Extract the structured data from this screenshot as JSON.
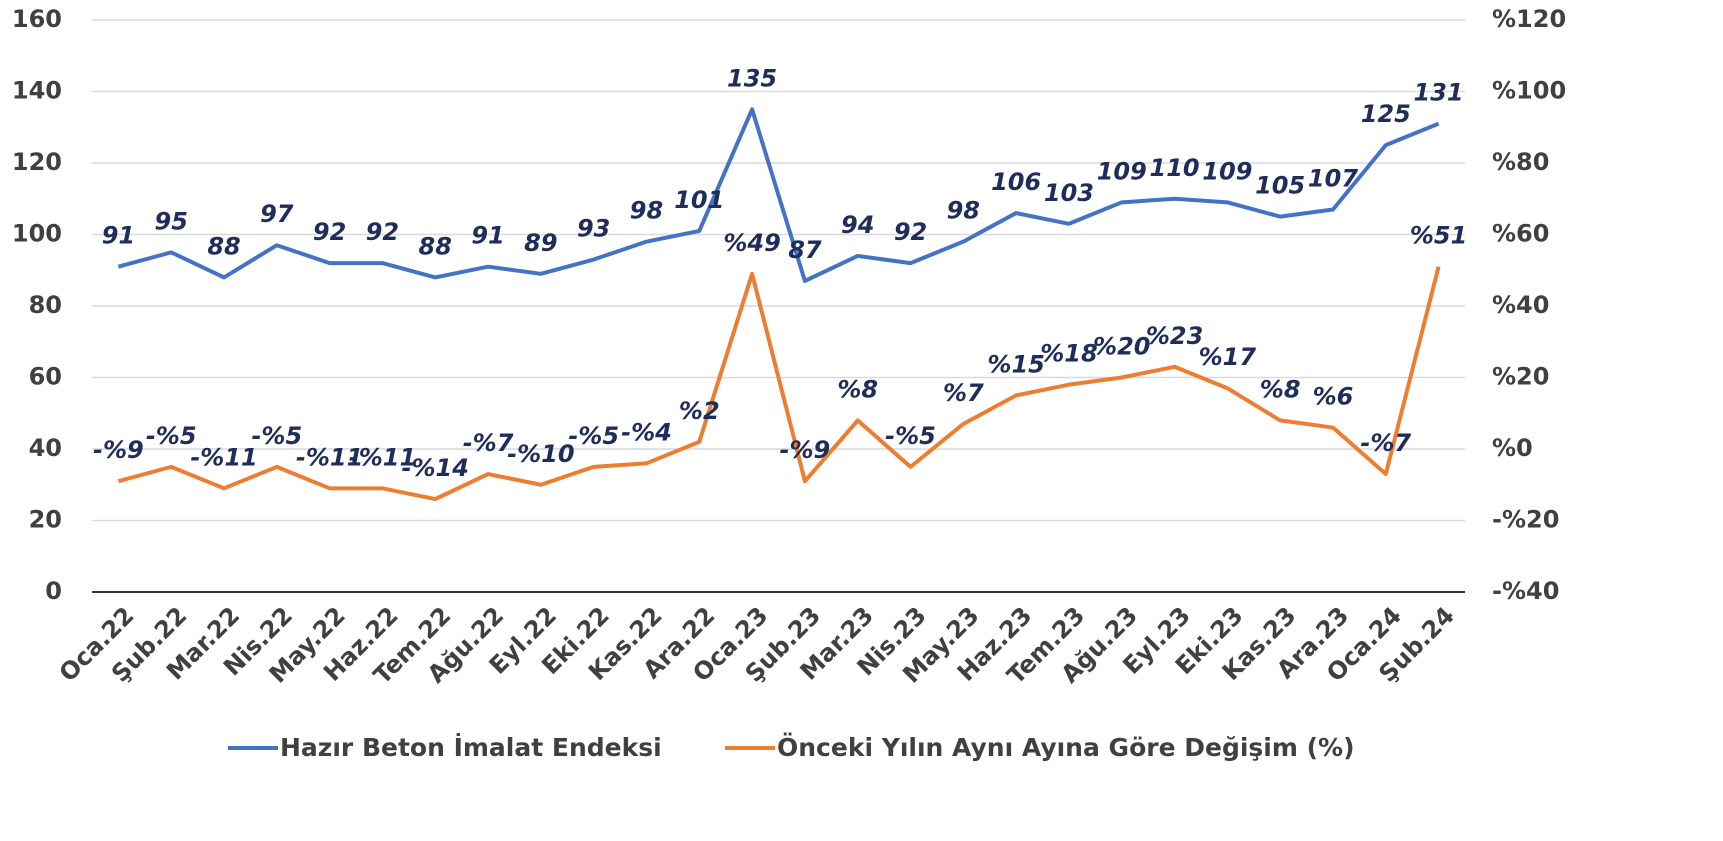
{
  "chart_data": {
    "type": "line",
    "categories": [
      "Oca.22",
      "Şub.22",
      "Mar.22",
      "Nis.22",
      "May.22",
      "Haz.22",
      "Tem.22",
      "Ağu.22",
      "Eyl.22",
      "Eki.22",
      "Kas.22",
      "Ara.22",
      "Oca.23",
      "Şub.23",
      "Mar.23",
      "Nis.23",
      "May.23",
      "Haz.23",
      "Tem.23",
      "Ağu.23",
      "Eyl.23",
      "Eki.23",
      "Kas.23",
      "Ara.23",
      "Oca.24",
      "Şub.24"
    ],
    "series": [
      {
        "name": "Hazır Beton İmalat Endeksi",
        "color": "#4472c4",
        "values": [
          91,
          95,
          88,
          97,
          92,
          92,
          88,
          91,
          89,
          93,
          98,
          101,
          135,
          87,
          94,
          92,
          98,
          106,
          103,
          109,
          110,
          109,
          105,
          107,
          125,
          131
        ]
      },
      {
        "name": "Önceki Yılın Aynı Ayına Göre Değişim (%)",
        "color": "#ed7d31",
        "axis": "y2",
        "values": [
          -9,
          -5,
          -11,
          -5,
          -11,
          -11,
          -14,
          -7,
          -10,
          -5,
          -4,
          2,
          49,
          -9,
          8,
          -5,
          7,
          15,
          18,
          20,
          23,
          17,
          8,
          6,
          -7,
          51
        ],
        "value_labels": [
          "-%9",
          "-%5",
          "-%11",
          "-%5",
          "-%11",
          "-%11",
          "-%14",
          "-%7",
          "-%10",
          "-%5",
          "-%4",
          "%2",
          "%49",
          "-%9",
          "%8",
          "-%5",
          "%7",
          "%15",
          "%18",
          "%20",
          "%23",
          "%17",
          "%8",
          "%6",
          "-%7",
          "%51"
        ]
      }
    ],
    "ylim": [
      0,
      160
    ],
    "yticks": [
      0,
      20,
      40,
      60,
      80,
      100,
      120,
      140,
      160
    ],
    "y2lim": [
      -40,
      120
    ],
    "y2ticks": [
      {
        "value": -40,
        "label": "-%40"
      },
      {
        "value": -20,
        "label": "-%20"
      },
      {
        "value": 0,
        "label": "%0"
      },
      {
        "value": 20,
        "label": "%20"
      },
      {
        "value": 40,
        "label": "%40"
      },
      {
        "value": 60,
        "label": "%60"
      },
      {
        "value": 80,
        "label": "%80"
      },
      {
        "value": 100,
        "label": "%100"
      },
      {
        "value": 120,
        "label": "%120"
      }
    ],
    "grid": true,
    "legend": "bottom"
  }
}
